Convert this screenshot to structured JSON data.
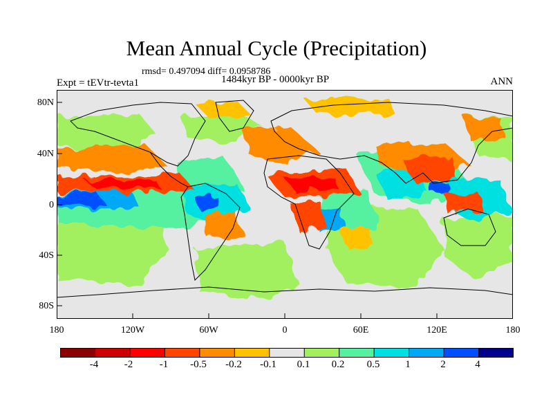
{
  "header": {
    "title": "Mean Annual Cycle (Precipitation)",
    "stats": "rmsd= 0.497094 diff= 0.0958786",
    "period": "1484kyr BP - 0000kyr BP",
    "experiment": "Expt = tEVtr-tevta1",
    "season": "ANN"
  },
  "axes": {
    "y_ticks": [
      "80N",
      "40N",
      "0",
      "40S",
      "80S"
    ],
    "x_ticks": [
      "180",
      "120W",
      "60W",
      "0",
      "60E",
      "120E",
      "180"
    ]
  },
  "colorbar": {
    "labels": [
      "-4",
      "-2",
      "-1",
      "-0.5",
      "-0.2",
      "-0.1",
      "0.1",
      "0.2",
      "0.5",
      "1",
      "2",
      "4"
    ],
    "colors": [
      "#8b0000",
      "#cc0000",
      "#ff0000",
      "#ff4500",
      "#ff8c00",
      "#ffc200",
      "#e6e6e6",
      "#a2f060",
      "#55f0a0",
      "#00e0e0",
      "#00a8f5",
      "#0050ff",
      "#00008c"
    ]
  },
  "map": {
    "background_color": "#e6e6e6",
    "coastline_color": "#000000"
  }
}
